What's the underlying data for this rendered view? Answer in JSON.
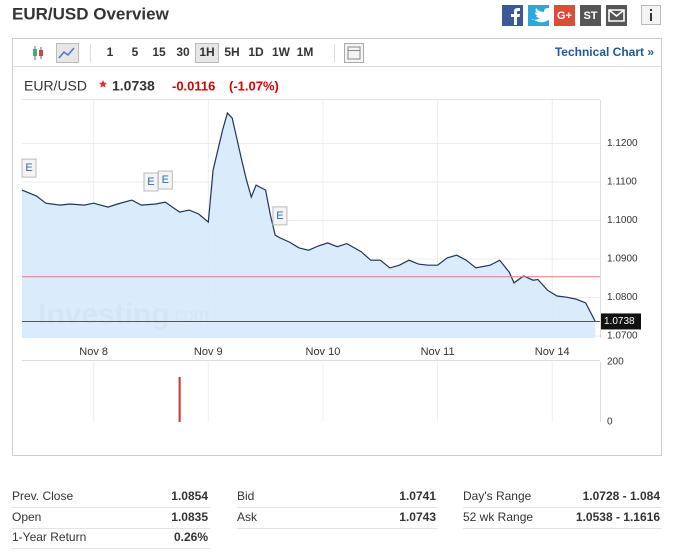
{
  "header": {
    "title": "EUR/USD Overview",
    "share": {
      "google_plus": "G+",
      "stocktwits": "ST"
    }
  },
  "toolbar": {
    "periods": [
      "1",
      "5",
      "15",
      "30",
      "1H",
      "5H",
      "1D",
      "1W",
      "1M"
    ],
    "selected_period": "1H",
    "technical_chart": "Technical Chart »"
  },
  "quote": {
    "symbol": "EUR/USD",
    "price": "1.0738",
    "change": "-0.0116",
    "change_percent": "(-1.07%)"
  },
  "chart_data": {
    "type": "line",
    "color": "#1d3557",
    "fill_color": "#d3e7fb",
    "grid": true,
    "x": [
      -15,
      -12,
      -10,
      -7,
      -5,
      -2,
      0,
      3,
      5,
      8,
      10,
      13,
      15,
      18,
      20,
      22,
      24,
      25,
      27,
      28,
      29,
      31,
      32,
      33,
      34,
      36,
      37,
      38,
      39,
      41,
      43,
      45,
      47,
      49,
      51,
      53,
      56,
      58,
      60,
      62,
      64,
      66,
      68,
      70,
      72,
      74,
      76,
      78,
      80,
      83,
      85,
      87,
      88,
      90,
      92,
      93,
      95,
      97,
      99,
      101,
      103,
      105
    ],
    "values": [
      1.1079,
      1.1064,
      1.1045,
      1.104,
      1.1043,
      1.104,
      1.1045,
      1.1035,
      1.1043,
      1.1053,
      1.104,
      1.1043,
      1.1048,
      1.1022,
      1.1027,
      1.1017,
      1.0996,
      1.1131,
      1.1235,
      1.1279,
      1.1266,
      1.1157,
      1.1105,
      1.1061,
      1.1092,
      1.1079,
      1.1014,
      1.0962,
      1.0955,
      1.0944,
      1.0929,
      1.0923,
      1.0934,
      1.0942,
      1.0932,
      1.094,
      1.0919,
      1.0897,
      1.0897,
      1.0877,
      1.0884,
      1.0897,
      1.0887,
      1.0884,
      1.0884,
      1.0903,
      1.091,
      1.0897,
      1.0877,
      1.0884,
      1.0897,
      1.0866,
      1.0838,
      1.0856,
      1.0845,
      1.0847,
      1.0819,
      1.0804,
      1.0801,
      1.0796,
      1.0786,
      1.0738
    ],
    "xlim": [
      -15,
      106
    ],
    "xticks": [
      {
        "value": 0,
        "label": "Nov 8"
      },
      {
        "value": 24,
        "label": "Nov 9"
      },
      {
        "value": 48,
        "label": "Nov 10"
      },
      {
        "value": 72,
        "label": "Nov 11"
      },
      {
        "value": 96,
        "label": "Nov 14"
      }
    ],
    "ylim": [
      1.0695,
      1.1313
    ],
    "yticks": [
      {
        "value": 1.07,
        "label": "1.0700"
      },
      {
        "value": 1.08,
        "label": "1.0800"
      },
      {
        "value": 1.09,
        "label": "1.0900"
      },
      {
        "value": 1.1,
        "label": "1.1000"
      },
      {
        "value": 1.11,
        "label": "1.1100"
      },
      {
        "value": 1.12,
        "label": "1.1200"
      }
    ],
    "reference_line": {
      "value": 1.0854,
      "color": "#e07b7b"
    },
    "last_price": 1.0738,
    "events": [
      {
        "x": -15,
        "label": "E"
      },
      {
        "x": 12,
        "label": "E"
      },
      {
        "x": 15,
        "label": "E"
      },
      {
        "x": 39,
        "label": "E"
      }
    ],
    "watermark": {
      "brand": "Investing",
      "domain": ".com"
    },
    "volume": {
      "x": [
        18
      ],
      "values": [
        150
      ],
      "color": "#cc3333",
      "ylim": [
        0,
        200
      ],
      "yticks": [
        0,
        200
      ]
    }
  },
  "table": {
    "rows": [
      [
        "Prev. Close",
        "1.0854",
        "Bid",
        "1.0741",
        "Day's Range",
        "1.0728 - 1.084"
      ],
      [
        "Open",
        "1.0835",
        "Ask",
        "1.0743",
        "52 wk Range",
        "1.0538 - 1.1616"
      ],
      [
        "1-Year Return",
        "0.26%"
      ]
    ]
  }
}
